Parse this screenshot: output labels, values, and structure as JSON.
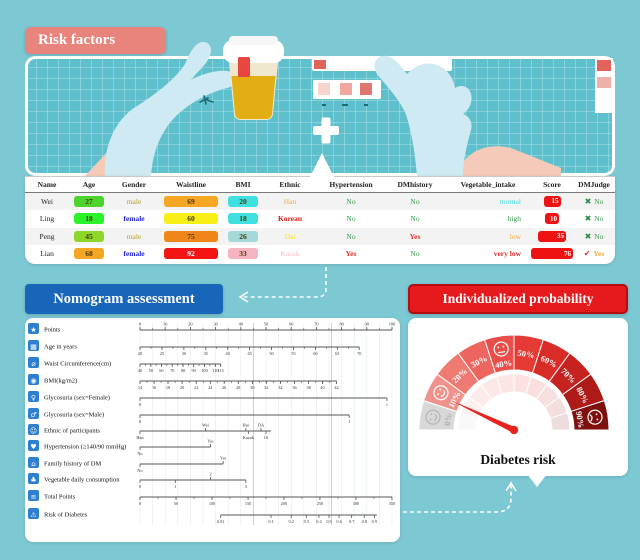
{
  "risk_factors": {
    "title": "Risk factors"
  },
  "table": {
    "headers": [
      "Name",
      "Age",
      "Gender",
      "Waistline",
      "BMI",
      "Ethnic",
      "Hypertension",
      "DMhistory",
      "Vegetable_intake",
      "Score",
      "DMJudge"
    ],
    "rows": [
      {
        "name": "Wei",
        "age": "27",
        "age_bg": "#4fd32e",
        "gender": "male",
        "gender_color": "#b5a21b",
        "gender_bold": false,
        "waistline": "69",
        "waist_bg": "#f5a623",
        "waist_fg": "#4a3a00",
        "bmi": "20",
        "bmi_bg": "#40e0e0",
        "ethnic": "Han",
        "ethnic_color": "#f5a93c",
        "ethnic_bold": false,
        "hypertension": "No",
        "hyp_color": "#3a9a4e",
        "hyp_bold": false,
        "dmhistory": "No",
        "dmh_color": "#3a9a4e",
        "dmh_bold": false,
        "vegetable": "normal",
        "veg_color": "#40dbe0",
        "veg_bold": false,
        "score": 15,
        "judge_icon": "✖",
        "judge_icon_color": "#2e8b47",
        "judge": "No",
        "judge_color": "#3a9a4e"
      },
      {
        "name": "Ling",
        "age": "18",
        "age_bg": "#2bf32b",
        "gender": "female",
        "gender_color": "#2626d8",
        "gender_bold": true,
        "waistline": "60",
        "waist_bg": "#f7ef16",
        "waist_fg": "#4a3a00",
        "bmi": "18",
        "bmi_bg": "#40e0e0",
        "ethnic": "Korean",
        "ethnic_color": "#e01816",
        "ethnic_bold": true,
        "hypertension": "No",
        "hyp_color": "#3a9a4e",
        "hyp_bold": false,
        "dmhistory": "No",
        "dmh_color": "#3a9a4e",
        "dmh_bold": false,
        "vegetable": "high",
        "veg_color": "#3a9a4e",
        "veg_bold": false,
        "score": 10,
        "judge_icon": "✖",
        "judge_icon_color": "#2e8b47",
        "judge": "No",
        "judge_color": "#3a9a4e"
      },
      {
        "name": "Peng",
        "age": "45",
        "age_bg": "#8ed62a",
        "gender": "male",
        "gender_color": "#b5a21b",
        "gender_bold": false,
        "waistline": "75",
        "waist_bg": "#f08519",
        "waist_fg": "#4a3a00",
        "bmi": "26",
        "bmi_bg": "#a5d8da",
        "ethnic": "Dai",
        "ethnic_color": "#f2e23a",
        "ethnic_bold": false,
        "hypertension": "No",
        "hyp_color": "#3a9a4e",
        "hyp_bold": false,
        "dmhistory": "Yes",
        "dmh_color": "#e0302c",
        "dmh_bold": true,
        "vegetable": "low",
        "veg_color": "#f5a93c",
        "veg_bold": false,
        "score": 35,
        "judge_icon": "✖",
        "judge_icon_color": "#2e8b47",
        "judge": "No",
        "judge_color": "#3a9a4e"
      },
      {
        "name": "Lian",
        "age": "68",
        "age_bg": "#f5a623",
        "gender": "female",
        "gender_color": "#2626d8",
        "gender_bold": true,
        "waistline": "92",
        "waist_bg": "#f31414",
        "waist_fg": "#ffffff",
        "bmi": "33",
        "bmi_bg": "#f6b3c0",
        "ethnic": "Kazak",
        "ethnic_color": "#f5bcc6",
        "ethnic_bold": false,
        "hypertension": "Yes",
        "hyp_color": "#e0302c",
        "hyp_bold": true,
        "dmhistory": "No",
        "dmh_color": "#3a9a4e",
        "dmh_bold": false,
        "vegetable": "very low",
        "veg_color": "#e0302c",
        "veg_bold": true,
        "score": 76,
        "judge_icon": "✔",
        "judge_icon_color": "#e0302c",
        "judge": "Yes",
        "judge_color": "#f5a93c"
      }
    ]
  },
  "nomogram": {
    "title": "Nomogram assessment",
    "ref_lines": [
      45,
      76
    ],
    "rows": [
      {
        "icon": "★",
        "name": "points",
        "label": "Points",
        "side": "a",
        "minor": 5,
        "line": [
          0,
          100
        ],
        "ticks": [
          {
            "p": 0,
            "t": "0"
          },
          {
            "p": 10,
            "t": "10"
          },
          {
            "p": 20,
            "t": "20"
          },
          {
            "p": 30,
            "t": "30"
          },
          {
            "p": 40,
            "t": "40"
          },
          {
            "p": 50,
            "t": "50"
          },
          {
            "p": 60,
            "t": "60"
          },
          {
            "p": 70,
            "t": "70"
          },
          {
            "p": 80,
            "t": "80"
          },
          {
            "p": 90,
            "t": "90"
          },
          {
            "p": 100,
            "t": "100"
          }
        ]
      },
      {
        "icon": "▦",
        "name": "age",
        "label": "Age in years",
        "side": "b",
        "minor": 4.35,
        "line": [
          0,
          87
        ],
        "ticks": [
          {
            "p": 0,
            "t": "20"
          },
          {
            "p": 8.7,
            "t": "25"
          },
          {
            "p": 17.4,
            "t": "30"
          },
          {
            "p": 26.1,
            "t": "35"
          },
          {
            "p": 34.8,
            "t": "40"
          },
          {
            "p": 43.5,
            "t": "45"
          },
          {
            "p": 52.2,
            "t": "50"
          },
          {
            "p": 60.9,
            "t": "55"
          },
          {
            "p": 69.6,
            "t": "60"
          },
          {
            "p": 78.3,
            "t": "65"
          },
          {
            "p": 87,
            "t": "70"
          }
        ]
      },
      {
        "icon": "⌀",
        "name": "waist-circumference",
        "label": "Waist Circumference(cm)",
        "side": "b",
        "minor": 2.13,
        "line": [
          0,
          32
        ],
        "ticks": [
          {
            "p": 0,
            "t": "40"
          },
          {
            "p": 4.3,
            "t": "50"
          },
          {
            "p": 8.5,
            "t": "60"
          },
          {
            "p": 12.8,
            "t": "70"
          },
          {
            "p": 17.1,
            "t": "80"
          },
          {
            "p": 21.3,
            "t": "90"
          },
          {
            "p": 25.6,
            "t": "100"
          },
          {
            "p": 29.9,
            "t": "110"
          },
          {
            "p": 32,
            "t": "115"
          }
        ]
      },
      {
        "icon": "◉",
        "name": "bmi",
        "label": "BMI(kg/m2)",
        "side": "b",
        "minor": 2.79,
        "line": [
          0,
          78
        ],
        "ticks": [
          {
            "p": 0,
            "t": "14"
          },
          {
            "p": 5.6,
            "t": "16"
          },
          {
            "p": 11.1,
            "t": "18"
          },
          {
            "p": 16.7,
            "t": "20"
          },
          {
            "p": 22.3,
            "t": "22"
          },
          {
            "p": 27.9,
            "t": "24"
          },
          {
            "p": 33.4,
            "t": "26"
          },
          {
            "p": 39,
            "t": "28"
          },
          {
            "p": 44.6,
            "t": "30"
          },
          {
            "p": 50.1,
            "t": "32"
          },
          {
            "p": 55.7,
            "t": "34"
          },
          {
            "p": 61.3,
            "t": "36"
          },
          {
            "p": 66.9,
            "t": "38"
          },
          {
            "p": 72.4,
            "t": "40"
          },
          {
            "p": 78,
            "t": "42"
          }
        ]
      },
      {
        "icon": "♀",
        "name": "glycosuria-female",
        "label": "Glycosuria (sex=Female)",
        "side": "b",
        "line": [
          0,
          98
        ],
        "ticks": [
          {
            "p": 0,
            "t": "0"
          },
          {
            "p": 98,
            "t": "1"
          }
        ]
      },
      {
        "icon": "♂",
        "name": "glycosuria-male",
        "label": "Glycosuria (sex=Male)",
        "side": "b",
        "line": [
          0,
          83
        ],
        "ticks": [
          {
            "p": 0,
            "t": "0"
          },
          {
            "p": 83,
            "t": "1"
          }
        ]
      },
      {
        "icon": "☺",
        "name": "ethnic",
        "label": "Ethnic of participants",
        "side": "b",
        "line": [
          0,
          52
        ],
        "ticks": [
          {
            "p": 0,
            "t": "Han"
          },
          {
            "p": 26,
            "t": "Wei",
            "s": "a"
          },
          {
            "p": 42,
            "t": "Hui",
            "s": "a"
          },
          {
            "p": 48,
            "t": "DA",
            "s": "a"
          },
          {
            "p": 43,
            "t": "Kazak"
          },
          {
            "p": 50,
            "t": "Ot"
          }
        ]
      },
      {
        "icon": "♥",
        "name": "hypertension",
        "label": "Hypertension (≥140/90 mmHg)",
        "side": "b",
        "line": [
          0,
          28
        ],
        "ticks": [
          {
            "p": 0,
            "t": "No"
          },
          {
            "p": 28,
            "t": "Yes",
            "s": "a"
          }
        ]
      },
      {
        "icon": "⌂",
        "name": "family-history-dm",
        "label": "Family history of DM",
        "side": "b",
        "line": [
          0,
          33
        ],
        "ticks": [
          {
            "p": 0,
            "t": "No"
          },
          {
            "p": 33,
            "t": "Yes",
            "s": "a"
          }
        ]
      },
      {
        "icon": "♣",
        "name": "vegetable-consumption",
        "label": "Vegetable daily consumption",
        "side": "b",
        "line": [
          0,
          42
        ],
        "ticks": [
          {
            "p": 0,
            "t": "0"
          },
          {
            "p": 14,
            "t": "1"
          },
          {
            "p": 28,
            "t": "2",
            "s": "a"
          },
          {
            "p": 42,
            "t": "3"
          }
        ]
      },
      {
        "icon": "≡",
        "name": "total-points",
        "label": "Total Points",
        "side": "b",
        "minor": 7.14,
        "line": [
          0,
          100
        ],
        "ticks": [
          {
            "p": 0,
            "t": "0"
          },
          {
            "p": 14.3,
            "t": "50"
          },
          {
            "p": 28.6,
            "t": "100"
          },
          {
            "p": 42.9,
            "t": "150"
          },
          {
            "p": 57.1,
            "t": "200"
          },
          {
            "p": 71.4,
            "t": "250"
          },
          {
            "p": 85.7,
            "t": "300"
          },
          {
            "p": 100,
            "t": "350"
          }
        ]
      },
      {
        "icon": "⚠",
        "name": "risk-of-diabetes",
        "label": "Risk of Diabetes",
        "side": "b",
        "line": [
          32,
          94
        ],
        "ticks": [
          {
            "p": 32,
            "t": "0.01"
          },
          {
            "p": 52,
            "t": "0.1"
          },
          {
            "p": 60,
            "t": "0.2"
          },
          {
            "p": 66,
            "t": "0.3"
          },
          {
            "p": 71,
            "t": "0.4"
          },
          {
            "p": 75,
            "t": "0.5"
          },
          {
            "p": 79,
            "t": "0.6"
          },
          {
            "p": 84,
            "t": "0.7"
          },
          {
            "p": 89,
            "t": "0.8"
          },
          {
            "p": 93,
            "t": "0.9"
          }
        ]
      }
    ]
  },
  "probability": {
    "title": "Individualized probability",
    "caption": "Diabetes risk",
    "gauge": {
      "labels": [
        "0%",
        "10%",
        "20%",
        "30%",
        "40%",
        "50%",
        "60%",
        "70%",
        "80%",
        "90%"
      ],
      "colors": [
        "#d8d8d8",
        "#f0928c",
        "#ee7a72",
        "#ec655e",
        "#e94f48",
        "#e63a34",
        "#d92c27",
        "#c62320",
        "#ad1a17",
        "#7f100e"
      ],
      "faces": [
        {
          "segment": 0,
          "mood": "smile"
        },
        {
          "segment": 1,
          "mood": "smile"
        },
        {
          "segment": 4,
          "mood": "worried"
        },
        {
          "segment": 9,
          "mood": "sad"
        }
      ],
      "needle_percent": 14,
      "needle_color": "#e8231f"
    }
  }
}
